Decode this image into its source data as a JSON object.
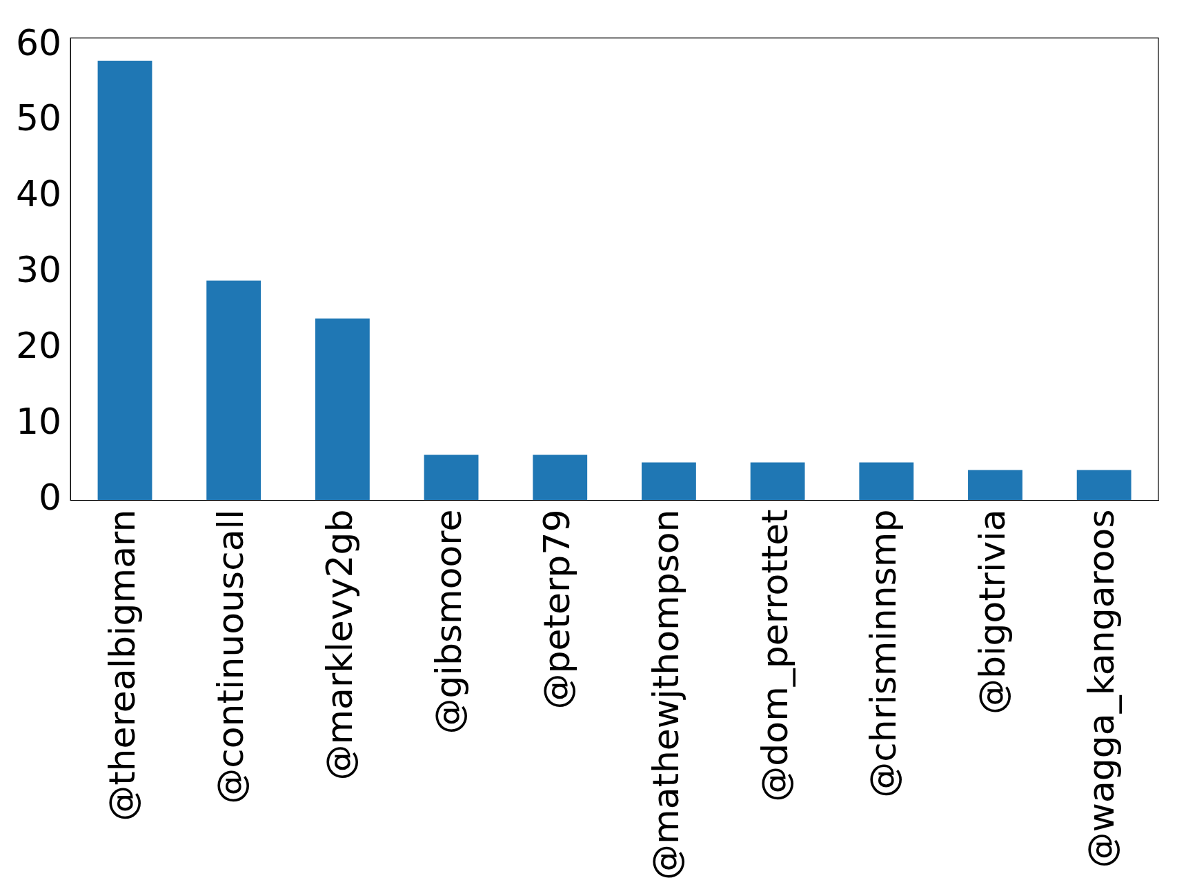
{
  "chart_data": {
    "type": "bar",
    "categories": [
      "@therealbigmarn",
      "@continuouscall",
      "@marklevy2gb",
      "@gibsmoore",
      "@peterp79",
      "@mathewjthompson",
      "@dom_perrottet",
      "@chrisminnsmp",
      "@bigotrivia",
      "@wagga_kangaroos"
    ],
    "values": [
      58,
      29,
      24,
      6,
      6,
      5,
      5,
      5,
      4,
      4
    ],
    "color": "#1f77b4",
    "ylim": [
      0,
      61
    ],
    "yticks": [
      0,
      10,
      20,
      30,
      40,
      50,
      60
    ],
    "grid": false,
    "legend": false
  }
}
